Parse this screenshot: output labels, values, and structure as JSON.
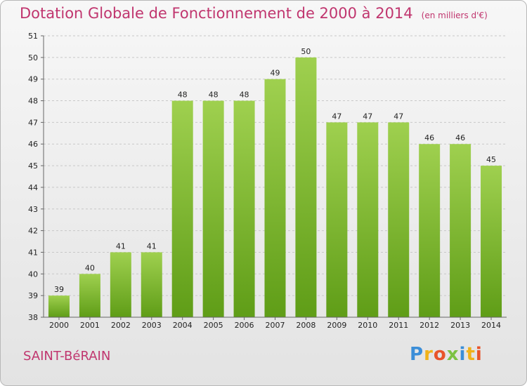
{
  "header": {
    "title": "Dotation Globale de Fonctionnement de 2000 à 2014",
    "unit": "(en milliers d'€)"
  },
  "footer": {
    "commune": "SAINT-BéRAIN",
    "logo_letters": [
      "P",
      "r",
      "o",
      "x",
      "i",
      "t",
      "i"
    ]
  },
  "colors": {
    "title": "#c0356e",
    "bar_top": "#9fd04f",
    "bar_bottom": "#5f9d17"
  },
  "chart_data": {
    "type": "bar",
    "title": "Dotation Globale de Fonctionnement de 2000 à 2014",
    "subtitle": "(en milliers d'€)",
    "xlabel": "",
    "ylabel": "",
    "categories": [
      "2000",
      "2001",
      "2002",
      "2003",
      "2004",
      "2005",
      "2006",
      "2007",
      "2008",
      "2009",
      "2010",
      "2011",
      "2012",
      "2013",
      "2014"
    ],
    "values": [
      39,
      40,
      41,
      41,
      48,
      48,
      48,
      49,
      50,
      47,
      47,
      47,
      46,
      46,
      45
    ],
    "ylim": [
      38,
      51
    ],
    "yticks": [
      "38",
      "39",
      "40",
      "41",
      "42",
      "43",
      "44",
      "45",
      "46",
      "47",
      "48",
      "49",
      "50",
      "51"
    ],
    "grid": true,
    "data_labels": true
  }
}
